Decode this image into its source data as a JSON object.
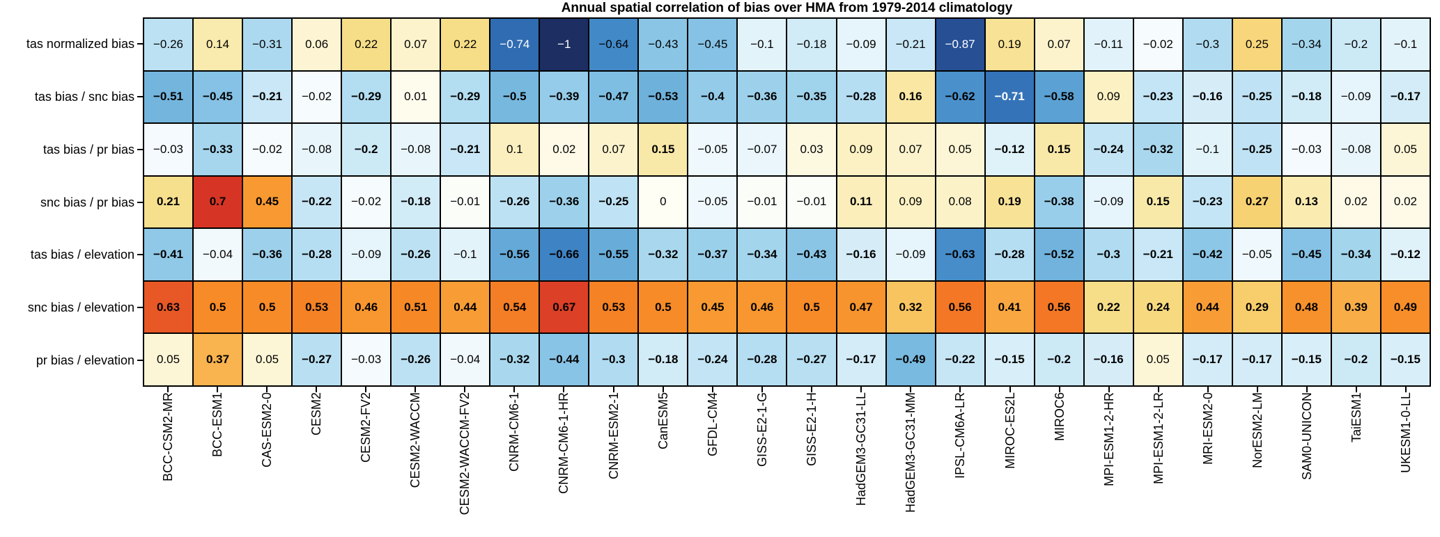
{
  "chart_data": {
    "type": "heatmap",
    "title": "Annual spatial correlation of bias over HMA from 1979-2014 climatology",
    "rows": [
      "tas normalized bias",
      "tas bias / snc bias",
      "tas bias / pr bias",
      "snc bias / pr bias",
      "tas bias / elevation",
      "snc bias / elevation",
      "pr bias / elevation"
    ],
    "columns": [
      "BCC-CSM2-MR",
      "BCC-ESM1",
      "CAS-ESM2-0",
      "CESM2",
      "CESM2-FV2",
      "CESM2-WACCM",
      "CESM2-WACCM-FV2",
      "CNRM-CM6-1",
      "CNRM-CM6-1-HR",
      "CNRM-ESM2-1",
      "CanESM5",
      "GFDL-CM4",
      "GISS-E2-1-G",
      "GISS-E2-1-H",
      "HadGEM3-GC31-LL",
      "HadGEM3-GC31-MM",
      "IPSL-CM6A-LR",
      "MIROC-ES2L",
      "MIROC6",
      "MPI-ESM1-2-HR",
      "MPI-ESM1-2-LR",
      "MRI-ESM2-0",
      "NorESM2-LM",
      "SAM0-UNICON",
      "TaiESM1",
      "UKESM1-0-LL"
    ],
    "values": [
      [
        -0.26,
        0.14,
        -0.31,
        0.06,
        0.22,
        0.07,
        0.22,
        -0.74,
        -1,
        -0.64,
        -0.43,
        -0.45,
        -0.1,
        -0.18,
        -0.09,
        -0.21,
        -0.87,
        0.19,
        0.07,
        -0.11,
        -0.02,
        -0.3,
        0.25,
        -0.34,
        -0.2,
        -0.1
      ],
      [
        -0.51,
        -0.45,
        -0.21,
        -0.02,
        -0.29,
        0.01,
        -0.29,
        -0.5,
        -0.39,
        -0.47,
        -0.53,
        -0.4,
        -0.36,
        -0.35,
        -0.28,
        0.16,
        -0.62,
        -0.71,
        -0.58,
        0.09,
        -0.23,
        -0.16,
        -0.25,
        -0.18,
        -0.09,
        -0.17
      ],
      [
        -0.03,
        -0.33,
        -0.02,
        -0.08,
        -0.2,
        -0.08,
        -0.21,
        0.1,
        0.02,
        0.07,
        0.15,
        -0.05,
        -0.07,
        0.03,
        0.09,
        0.07,
        0.05,
        -0.12,
        0.15,
        -0.24,
        -0.32,
        -0.1,
        -0.25,
        -0.03,
        -0.08,
        0.05
      ],
      [
        0.21,
        0.7,
        0.45,
        -0.22,
        -0.02,
        -0.18,
        -0.01,
        -0.26,
        -0.36,
        -0.25,
        0,
        -0.05,
        -0.01,
        -0.01,
        0.11,
        0.09,
        0.08,
        0.19,
        -0.38,
        -0.09,
        0.15,
        -0.23,
        0.27,
        0.13,
        0.02,
        0.02
      ],
      [
        -0.41,
        -0.04,
        -0.36,
        -0.28,
        -0.09,
        -0.26,
        -0.1,
        -0.56,
        -0.66,
        -0.55,
        -0.32,
        -0.37,
        -0.34,
        -0.43,
        -0.16,
        -0.09,
        -0.63,
        -0.28,
        -0.52,
        -0.3,
        -0.21,
        -0.42,
        -0.05,
        -0.45,
        -0.34,
        -0.12
      ],
      [
        0.63,
        0.5,
        0.5,
        0.53,
        0.46,
        0.51,
        0.44,
        0.54,
        0.67,
        0.53,
        0.5,
        0.45,
        0.46,
        0.5,
        0.47,
        0.32,
        0.56,
        0.41,
        0.56,
        0.22,
        0.24,
        0.44,
        0.29,
        0.48,
        0.39,
        0.49
      ],
      [
        0.05,
        0.37,
        0.05,
        -0.27,
        -0.03,
        -0.26,
        -0.04,
        -0.32,
        -0.44,
        -0.3,
        -0.18,
        -0.24,
        -0.28,
        -0.27,
        -0.17,
        -0.49,
        -0.22,
        -0.15,
        -0.2,
        -0.16,
        0.05,
        -0.17,
        -0.17,
        -0.15,
        -0.2,
        -0.15
      ]
    ],
    "bold": [
      [
        0,
        0,
        0,
        0,
        0,
        0,
        0,
        0,
        0,
        0,
        0,
        0,
        0,
        0,
        0,
        0,
        0,
        0,
        0,
        0,
        0,
        0,
        0,
        0,
        0,
        0
      ],
      [
        1,
        1,
        1,
        0,
        1,
        0,
        1,
        1,
        1,
        1,
        1,
        1,
        1,
        1,
        1,
        1,
        1,
        1,
        1,
        0,
        1,
        1,
        1,
        1,
        0,
        1
      ],
      [
        0,
        1,
        0,
        0,
        1,
        0,
        1,
        0,
        0,
        0,
        1,
        0,
        0,
        0,
        0,
        0,
        0,
        1,
        1,
        1,
        1,
        0,
        1,
        0,
        0,
        0
      ],
      [
        1,
        1,
        1,
        1,
        0,
        1,
        0,
        1,
        1,
        1,
        0,
        0,
        0,
        0,
        1,
        0,
        0,
        1,
        1,
        0,
        1,
        1,
        1,
        1,
        0,
        0
      ],
      [
        1,
        0,
        1,
        1,
        0,
        1,
        0,
        1,
        1,
        1,
        1,
        1,
        1,
        1,
        1,
        0,
        1,
        1,
        1,
        1,
        1,
        1,
        0,
        1,
        1,
        1
      ],
      [
        1,
        1,
        1,
        1,
        1,
        1,
        1,
        1,
        1,
        1,
        1,
        1,
        1,
        1,
        1,
        1,
        1,
        1,
        1,
        1,
        1,
        1,
        1,
        1,
        1,
        1
      ],
      [
        0,
        1,
        0,
        1,
        0,
        1,
        0,
        1,
        1,
        1,
        1,
        1,
        1,
        1,
        1,
        1,
        1,
        1,
        1,
        1,
        0,
        1,
        1,
        1,
        1,
        1
      ]
    ],
    "value_range": [
      -1,
      1
    ],
    "colormap": {
      "name": "diverging-blue-yellow-red",
      "white_text_at_or_below": -0.7,
      "grid_line_color": "#000000",
      "background": "#ffffff",
      "stops": [
        [
          -1.0,
          "#1c2e62"
        ],
        [
          -0.85,
          "#27549c"
        ],
        [
          -0.72,
          "#3270b6"
        ],
        [
          -0.64,
          "#4289c8"
        ],
        [
          -0.55,
          "#68add9"
        ],
        [
          -0.45,
          "#85c2e5"
        ],
        [
          -0.35,
          "#a0d3ec"
        ],
        [
          -0.25,
          "#bfe3f4"
        ],
        [
          -0.15,
          "#d8eef8"
        ],
        [
          -0.08,
          "#e8f5fb"
        ],
        [
          -0.02,
          "#f6fbfd"
        ],
        [
          0.0,
          "#fffef4"
        ],
        [
          0.03,
          "#fdf8e0"
        ],
        [
          0.08,
          "#fcf2c8"
        ],
        [
          0.15,
          "#f9e9a8"
        ],
        [
          0.22,
          "#f6dd88"
        ],
        [
          0.3,
          "#f8cb67"
        ],
        [
          0.38,
          "#f9b04b"
        ],
        [
          0.45,
          "#f89a31"
        ],
        [
          0.52,
          "#f68524"
        ],
        [
          0.6,
          "#ef6a26"
        ],
        [
          0.67,
          "#dc4027"
        ],
        [
          0.72,
          "#d22d23"
        ]
      ]
    }
  }
}
